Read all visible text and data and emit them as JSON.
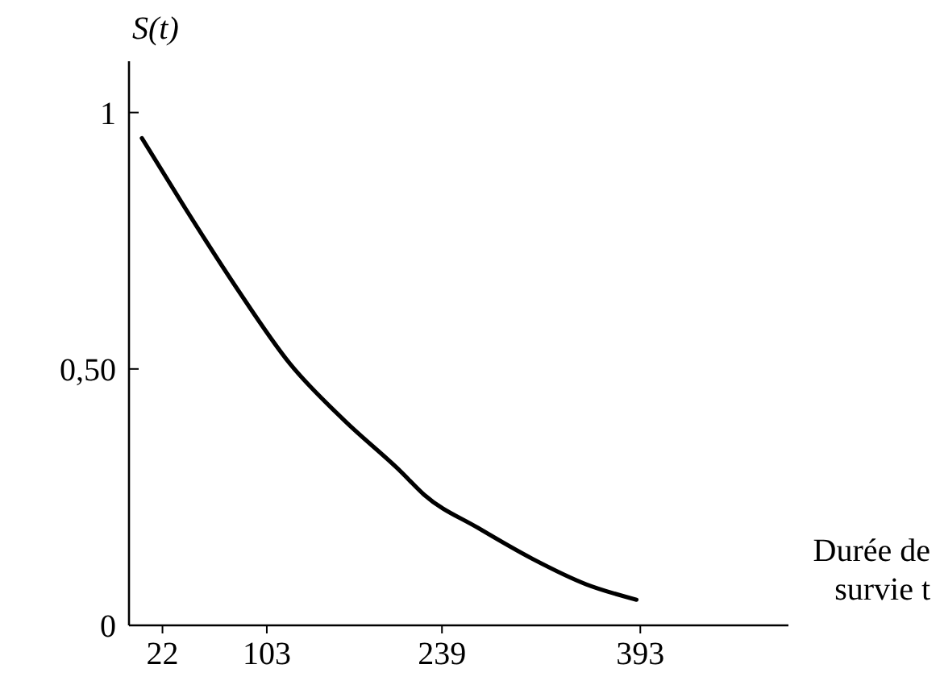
{
  "chart_data": {
    "type": "line",
    "xlabel": "Durée de survie t",
    "ylabel": "S(t)",
    "x": [
      6,
      38,
      79,
      121,
      163,
      207,
      225,
      267,
      309,
      351,
      390
    ],
    "series": [
      {
        "color": "#000000",
        "values": [
          0.95,
          0.82,
          0.66,
          0.51,
          0.4,
          0.3,
          0.255,
          0.19,
          0.13,
          0.08,
          0.05
        ]
      }
    ],
    "xlim": [
      -4,
      508
    ],
    "ylim": [
      0,
      1.1
    ],
    "xticks": [
      22,
      103,
      239,
      393
    ],
    "yticks": [
      {
        "value": 0,
        "label": "0"
      },
      {
        "value": 0.5,
        "label": "0,50"
      },
      {
        "value": 1,
        "label": "1"
      }
    ],
    "marker": "none",
    "line_style": "solid",
    "grid": false
  }
}
